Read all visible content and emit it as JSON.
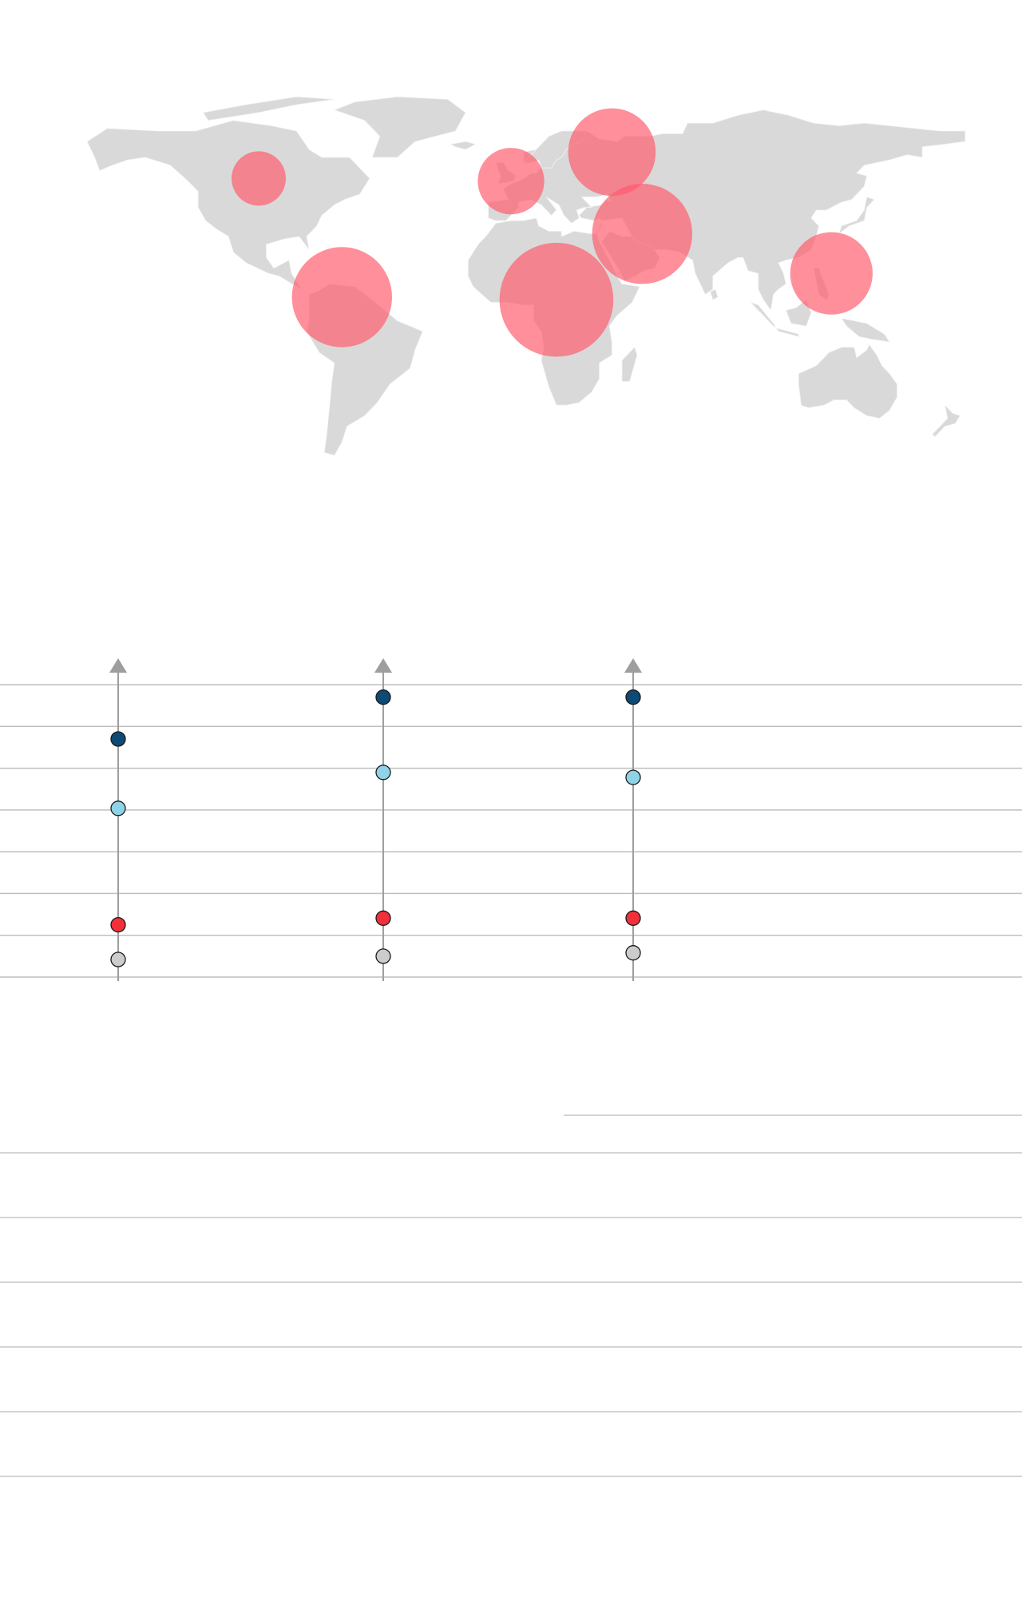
{
  "colors": {
    "land": "#d9d9d9",
    "border": "#f4f4f4",
    "bubble": "#ff5a6a",
    "gridline": "#bfbfbf",
    "axis": "#9e9e9e",
    "dark_blue": "#0d4a75",
    "light_blue": "#8fd3e8",
    "red": "#f2303a",
    "grey": "#cccccc"
  },
  "chart_data": [
    {
      "type": "scatter",
      "kind": "proportional-symbol-map",
      "title": "",
      "regions": [
        {
          "id": "north-america",
          "lon": -100,
          "lat": 52,
          "size": 1.0
        },
        {
          "id": "latin-america",
          "lon": -67,
          "lat": 7,
          "size": 3.4
        },
        {
          "id": "western-europe",
          "lon": 0,
          "lat": 51,
          "size": 1.5
        },
        {
          "id": "russia-north",
          "lon": 40,
          "lat": 62,
          "size": 2.6
        },
        {
          "id": "africa",
          "lon": 18,
          "lat": 6,
          "size": 4.4
        },
        {
          "id": "middle-east-central-asia",
          "lon": 52,
          "lat": 31,
          "size": 3.4
        },
        {
          "id": "east-southeast-asia",
          "lon": 127,
          "lat": 16,
          "size": 2.3
        }
      ]
    },
    {
      "type": "scatter",
      "kind": "dot-plot",
      "title": "",
      "ylim": [
        0,
        7
      ],
      "grid": true,
      "columns": [
        {
          "values": {
            "dark_blue": 5.7,
            "light_blue": 4.04,
            "red": 1.25,
            "grey": 0.42
          }
        },
        {
          "values": {
            "dark_blue": 6.7,
            "light_blue": 4.9,
            "red": 1.41,
            "grey": 0.5
          }
        },
        {
          "values": {
            "dark_blue": 6.7,
            "light_blue": 4.78,
            "red": 1.41,
            "grey": 0.58
          }
        }
      ]
    }
  ]
}
